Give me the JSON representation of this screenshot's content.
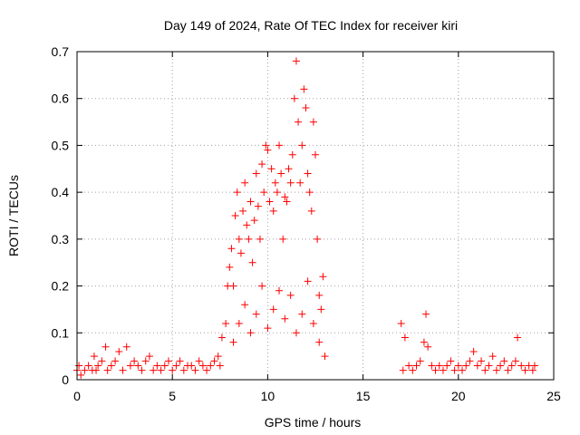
{
  "chart_data": {
    "type": "scatter",
    "title": "Day 149 of 2024, Rate Of TEC Index for receiver kiri",
    "xlabel": "GPS time / hours",
    "ylabel": "ROTI / TECUs",
    "xlim": [
      0,
      25
    ],
    "ylim": [
      0,
      0.7
    ],
    "xticks": [
      0,
      5,
      10,
      15,
      20,
      25
    ],
    "yticks": [
      0,
      0.1,
      0.2,
      0.3,
      0.4,
      0.5,
      0.6,
      0.7
    ],
    "xtick_labels": [
      "0",
      "5",
      "10",
      "15",
      "20",
      "25"
    ],
    "ytick_labels": [
      "0",
      "0.1",
      "0.2",
      "0.3",
      "0.4",
      "0.5",
      "0.6",
      "0.7"
    ],
    "grid": true,
    "marker": "+",
    "color": "#ff0000",
    "series": [
      {
        "points": [
          [
            0.0,
            0.02
          ],
          [
            0.1,
            0.03
          ],
          [
            0.2,
            0.01
          ],
          [
            0.4,
            0.02
          ],
          [
            0.6,
            0.03
          ],
          [
            0.8,
            0.02
          ],
          [
            0.9,
            0.05
          ],
          [
            1.0,
            0.02
          ],
          [
            1.1,
            0.03
          ],
          [
            1.3,
            0.04
          ],
          [
            1.5,
            0.07
          ],
          [
            1.6,
            0.02
          ],
          [
            1.8,
            0.03
          ],
          [
            2.0,
            0.04
          ],
          [
            2.2,
            0.06
          ],
          [
            2.4,
            0.02
          ],
          [
            2.6,
            0.07
          ],
          [
            2.8,
            0.03
          ],
          [
            3.0,
            0.04
          ],
          [
            3.2,
            0.03
          ],
          [
            3.4,
            0.02
          ],
          [
            3.6,
            0.04
          ],
          [
            3.8,
            0.05
          ],
          [
            4.0,
            0.02
          ],
          [
            4.2,
            0.03
          ],
          [
            4.4,
            0.02
          ],
          [
            4.6,
            0.03
          ],
          [
            4.8,
            0.04
          ],
          [
            5.0,
            0.02
          ],
          [
            5.2,
            0.03
          ],
          [
            5.4,
            0.04
          ],
          [
            5.6,
            0.02
          ],
          [
            5.8,
            0.03
          ],
          [
            6.0,
            0.03
          ],
          [
            6.2,
            0.02
          ],
          [
            6.4,
            0.04
          ],
          [
            6.6,
            0.03
          ],
          [
            6.8,
            0.02
          ],
          [
            7.0,
            0.03
          ],
          [
            7.2,
            0.04
          ],
          [
            7.4,
            0.05
          ],
          [
            7.5,
            0.03
          ],
          [
            7.6,
            0.09
          ],
          [
            7.8,
            0.12
          ],
          [
            7.9,
            0.2
          ],
          [
            8.0,
            0.24
          ],
          [
            8.1,
            0.28
          ],
          [
            8.2,
            0.2
          ],
          [
            8.3,
            0.35
          ],
          [
            8.4,
            0.4
          ],
          [
            8.5,
            0.3
          ],
          [
            8.6,
            0.27
          ],
          [
            8.7,
            0.36
          ],
          [
            8.8,
            0.42
          ],
          [
            8.9,
            0.33
          ],
          [
            9.0,
            0.3
          ],
          [
            9.1,
            0.38
          ],
          [
            9.2,
            0.25
          ],
          [
            9.3,
            0.34
          ],
          [
            9.4,
            0.44
          ],
          [
            9.5,
            0.37
          ],
          [
            9.6,
            0.3
          ],
          [
            9.7,
            0.46
          ],
          [
            9.8,
            0.4
          ],
          [
            9.9,
            0.5
          ],
          [
            10.0,
            0.49
          ],
          [
            10.1,
            0.38
          ],
          [
            10.2,
            0.45
          ],
          [
            10.3,
            0.36
          ],
          [
            10.4,
            0.42
          ],
          [
            10.5,
            0.4
          ],
          [
            10.6,
            0.5
          ],
          [
            10.7,
            0.44
          ],
          [
            10.8,
            0.3
          ],
          [
            10.9,
            0.39
          ],
          [
            11.0,
            0.38
          ],
          [
            11.1,
            0.45
          ],
          [
            11.2,
            0.42
          ],
          [
            11.3,
            0.48
          ],
          [
            11.4,
            0.6
          ],
          [
            11.5,
            0.68
          ],
          [
            11.6,
            0.55
          ],
          [
            11.7,
            0.42
          ],
          [
            11.8,
            0.5
          ],
          [
            11.9,
            0.62
          ],
          [
            12.0,
            0.58
          ],
          [
            12.1,
            0.44
          ],
          [
            12.2,
            0.4
          ],
          [
            12.3,
            0.36
          ],
          [
            12.4,
            0.55
          ],
          [
            12.5,
            0.48
          ],
          [
            12.6,
            0.3
          ],
          [
            12.7,
            0.18
          ],
          [
            12.8,
            0.15
          ],
          [
            12.9,
            0.22
          ],
          [
            8.2,
            0.08
          ],
          [
            8.5,
            0.12
          ],
          [
            8.8,
            0.16
          ],
          [
            9.1,
            0.1
          ],
          [
            9.4,
            0.14
          ],
          [
            9.7,
            0.2
          ],
          [
            10.0,
            0.11
          ],
          [
            10.3,
            0.15
          ],
          [
            10.6,
            0.19
          ],
          [
            10.9,
            0.13
          ],
          [
            11.2,
            0.18
          ],
          [
            11.5,
            0.1
          ],
          [
            11.8,
            0.14
          ],
          [
            12.1,
            0.21
          ],
          [
            12.4,
            0.12
          ],
          [
            12.7,
            0.08
          ],
          [
            13.0,
            0.05
          ],
          [
            17.0,
            0.12
          ],
          [
            17.1,
            0.02
          ],
          [
            17.2,
            0.09
          ],
          [
            17.4,
            0.03
          ],
          [
            17.6,
            0.02
          ],
          [
            17.8,
            0.03
          ],
          [
            18.0,
            0.04
          ],
          [
            18.2,
            0.08
          ],
          [
            18.3,
            0.14
          ],
          [
            18.4,
            0.07
          ],
          [
            18.6,
            0.03
          ],
          [
            18.8,
            0.02
          ],
          [
            19.0,
            0.03
          ],
          [
            19.2,
            0.02
          ],
          [
            19.4,
            0.03
          ],
          [
            19.6,
            0.04
          ],
          [
            19.8,
            0.02
          ],
          [
            20.0,
            0.03
          ],
          [
            20.2,
            0.02
          ],
          [
            20.4,
            0.03
          ],
          [
            20.6,
            0.04
          ],
          [
            20.8,
            0.06
          ],
          [
            21.0,
            0.03
          ],
          [
            21.2,
            0.04
          ],
          [
            21.4,
            0.02
          ],
          [
            21.6,
            0.03
          ],
          [
            21.8,
            0.05
          ],
          [
            22.0,
            0.02
          ],
          [
            22.2,
            0.03
          ],
          [
            22.4,
            0.04
          ],
          [
            22.6,
            0.02
          ],
          [
            22.8,
            0.03
          ],
          [
            23.0,
            0.04
          ],
          [
            23.1,
            0.09
          ],
          [
            23.3,
            0.03
          ],
          [
            23.5,
            0.02
          ],
          [
            23.7,
            0.03
          ],
          [
            23.9,
            0.02
          ],
          [
            24.0,
            0.03
          ]
        ]
      }
    ]
  }
}
